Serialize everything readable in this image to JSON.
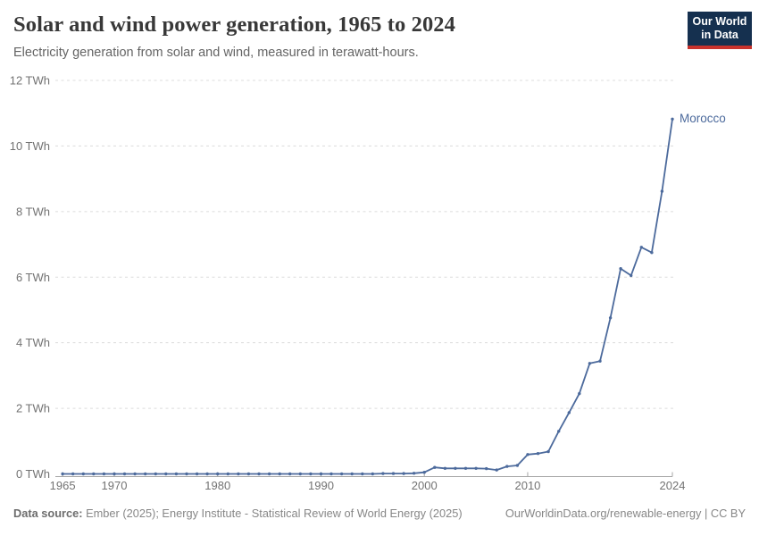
{
  "header": {
    "title": "Solar and wind power generation, 1965 to 2024",
    "subtitle": "Electricity generation from solar and wind, measured in terawatt-hours."
  },
  "logo": {
    "line1": "Our World",
    "line2": "in Data",
    "bg_color": "#15304f",
    "bar_color": "#c8322c"
  },
  "series_label": "Morocco",
  "footer": {
    "source_prefix": "Data source:",
    "source_text": " Ember (2025); Energy Institute - Statistical Review of World Energy (2025)",
    "right_text": "OurWorldinData.org/renewable-energy | CC BY"
  },
  "chart_data": {
    "type": "line",
    "title": "Solar and wind power generation, 1965 to 2024",
    "entity": "Morocco",
    "unit": "TWh",
    "line_color": "#4C6A9C",
    "grid": true,
    "legend_position": "end-of-line",
    "xlim": [
      1965,
      2024
    ],
    "ylim": [
      0,
      12
    ],
    "x_ticks": [
      1965,
      1970,
      1980,
      1990,
      2000,
      2010,
      2024
    ],
    "y_ticks": [
      0,
      2,
      4,
      6,
      8,
      10,
      12
    ],
    "y_tick_suffix": " TWh",
    "x": [
      1965,
      1966,
      1967,
      1968,
      1969,
      1970,
      1971,
      1972,
      1973,
      1974,
      1975,
      1976,
      1977,
      1978,
      1979,
      1980,
      1981,
      1982,
      1983,
      1984,
      1985,
      1986,
      1987,
      1988,
      1989,
      1990,
      1991,
      1992,
      1993,
      1994,
      1995,
      1996,
      1997,
      1998,
      1999,
      2000,
      2001,
      2002,
      2003,
      2004,
      2005,
      2006,
      2007,
      2008,
      2009,
      2010,
      2011,
      2012,
      2013,
      2014,
      2015,
      2016,
      2017,
      2018,
      2019,
      2020,
      2021,
      2022,
      2023,
      2024
    ],
    "values": [
      0,
      0,
      0,
      0,
      0,
      0,
      0,
      0,
      0,
      0,
      0,
      0,
      0,
      0,
      0,
      0,
      0,
      0,
      0,
      0,
      0,
      0,
      0,
      0,
      0,
      0,
      0,
      0,
      0,
      0,
      0,
      0.01,
      0.01,
      0.01,
      0.02,
      0.05,
      0.2,
      0.17,
      0.17,
      0.17,
      0.17,
      0.16,
      0.12,
      0.23,
      0.26,
      0.59,
      0.62,
      0.68,
      1.3,
      1.87,
      2.45,
      3.37,
      3.44,
      4.76,
      6.26,
      6.05,
      6.91,
      6.75,
      8.62,
      10.82
    ]
  }
}
